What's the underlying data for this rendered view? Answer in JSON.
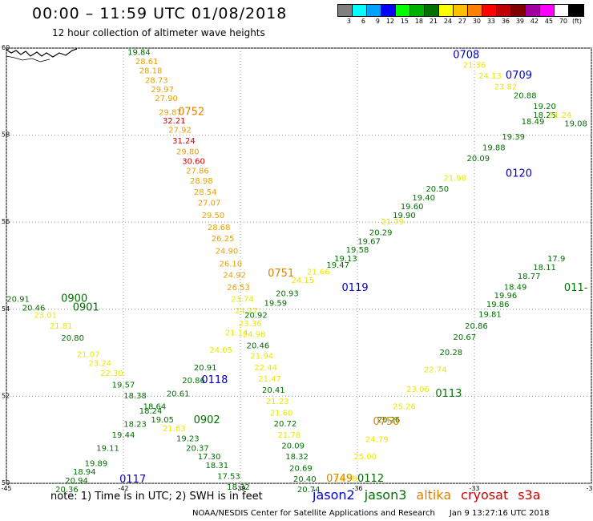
{
  "header": {
    "title": "00:00 – 11:59 UTC 01/08/2018",
    "subtitle": "12 hour collection of altimeter wave heights"
  },
  "colorbar": {
    "unit_label": "(ft)",
    "bins": [
      {
        "label": "3",
        "color": "#808080"
      },
      {
        "label": "6",
        "color": "#00ffff"
      },
      {
        "label": "9",
        "color": "#00a0ff"
      },
      {
        "label": "12",
        "color": "#0000ff"
      },
      {
        "label": "15",
        "color": "#00ff00"
      },
      {
        "label": "18",
        "color": "#00b000"
      },
      {
        "label": "21",
        "color": "#007000"
      },
      {
        "label": "24",
        "color": "#ffff00"
      },
      {
        "label": "27",
        "color": "#ffc000"
      },
      {
        "label": "30",
        "color": "#ff8000"
      },
      {
        "label": "33",
        "color": "#ff0000"
      },
      {
        "label": "36",
        "color": "#c00000"
      },
      {
        "label": "39",
        "color": "#800000"
      },
      {
        "label": "42",
        "color": "#a000a0"
      },
      {
        "label": "45",
        "color": "#ff00ff"
      },
      {
        "label": "70",
        "color": "#ffffff"
      },
      {
        "label": "(ft)",
        "color": "#000000"
      }
    ]
  },
  "map": {
    "lon_range": [
      -45,
      -30
    ],
    "lat_range": [
      50,
      60
    ],
    "lon_ticks": [
      "-45",
      "-42",
      "-39",
      "-36",
      "-33",
      "-30"
    ],
    "lat_ticks": [
      "50",
      "52",
      "54",
      "56",
      "58",
      "60"
    ],
    "track_colors": {
      "jason2": "#0000cc",
      "jason3": "#007000",
      "altika": "#e08000",
      "cryosat": "#cc0000",
      "s3a": "#cc0000"
    },
    "height_colors": {
      "green": "#007000",
      "yellow": "#e8e800",
      "orange": "#e8a000",
      "red": "#cc0000"
    },
    "passes": [
      {
        "id": "0708",
        "lon": -33.55,
        "lat": 59.77,
        "sat": "jason2"
      },
      {
        "id": "0709",
        "lon": -32.2,
        "lat": 59.3,
        "sat": "jason2"
      },
      {
        "id": "0752",
        "lon": -40.6,
        "lat": 58.46,
        "sat": "altika"
      },
      {
        "id": "0751",
        "lon": -38.3,
        "lat": 54.75,
        "sat": "altika"
      },
      {
        "id": "0750",
        "lon": -35.6,
        "lat": 51.34,
        "sat": "altika"
      },
      {
        "id": "0749",
        "lon": -36.8,
        "lat": 50.04,
        "sat": "altika"
      },
      {
        "id": "0120",
        "lon": -32.2,
        "lat": 57.04,
        "sat": "jason2"
      },
      {
        "id": "0119",
        "lon": -36.4,
        "lat": 54.42,
        "sat": "jason2"
      },
      {
        "id": "0118",
        "lon": -40.0,
        "lat": 52.3,
        "sat": "jason2"
      },
      {
        "id": "0117",
        "lon": -42.1,
        "lat": 50.02,
        "sat": "jason2"
      },
      {
        "id": "0900",
        "lon": -43.6,
        "lat": 54.17,
        "sat": "jason3"
      },
      {
        "id": "0901",
        "lon": -43.3,
        "lat": 53.97,
        "sat": "jason3"
      },
      {
        "id": "0902",
        "lon": -40.2,
        "lat": 51.38,
        "sat": "jason3"
      },
      {
        "id": "0113",
        "lon": -34.0,
        "lat": 51.99,
        "sat": "jason3"
      },
      {
        "id": "0112",
        "lon": -36.0,
        "lat": 50.04,
        "sat": "jason3"
      },
      {
        "id": "011-",
        "lon": -30.7,
        "lat": 54.42,
        "sat": "jason3"
      }
    ],
    "tracks": [
      {
        "name": "altika-0752-0750",
        "points": [
          {
            "lon": -41.6,
            "lat": 59.84,
            "v": "19.84",
            "c": "green"
          },
          {
            "lon": -41.4,
            "lat": 59.63,
            "v": "28.61",
            "c": "orange"
          },
          {
            "lon": -41.3,
            "lat": 59.42,
            "v": "28.18",
            "c": "orange"
          },
          {
            "lon": -41.15,
            "lat": 59.2,
            "v": "28.73",
            "c": "orange"
          },
          {
            "lon": -41.0,
            "lat": 58.99,
            "v": "29.97",
            "c": "orange"
          },
          {
            "lon": -40.9,
            "lat": 58.78,
            "v": "27.90",
            "c": "orange"
          },
          {
            "lon": -40.8,
            "lat": 58.46,
            "v": "29.87",
            "c": "orange"
          },
          {
            "lon": -40.7,
            "lat": 58.27,
            "v": "32.21",
            "c": "red"
          },
          {
            "lon": -40.55,
            "lat": 58.06,
            "v": "27.92",
            "c": "orange"
          },
          {
            "lon": -40.45,
            "lat": 57.81,
            "v": "31.24",
            "c": "red"
          },
          {
            "lon": -40.35,
            "lat": 57.56,
            "v": "29.80",
            "c": "orange"
          },
          {
            "lon": -40.2,
            "lat": 57.34,
            "v": "30.60",
            "c": "red"
          },
          {
            "lon": -40.1,
            "lat": 57.12,
            "v": "27.86",
            "c": "orange"
          },
          {
            "lon": -40.0,
            "lat": 56.89,
            "v": "28.98",
            "c": "orange"
          },
          {
            "lon": -39.9,
            "lat": 56.63,
            "v": "28.54",
            "c": "orange"
          },
          {
            "lon": -39.8,
            "lat": 56.38,
            "v": "27.07",
            "c": "orange"
          },
          {
            "lon": -39.7,
            "lat": 56.1,
            "v": "29.50",
            "c": "orange"
          },
          {
            "lon": -39.55,
            "lat": 55.82,
            "v": "28.68",
            "c": "orange"
          },
          {
            "lon": -39.45,
            "lat": 55.56,
            "v": "26.25",
            "c": "orange"
          },
          {
            "lon": -39.35,
            "lat": 55.28,
            "v": "24.90",
            "c": "orange"
          },
          {
            "lon": -39.25,
            "lat": 54.98,
            "v": "26.10",
            "c": "orange"
          },
          {
            "lon": -39.15,
            "lat": 54.72,
            "v": "24.92",
            "c": "orange"
          },
          {
            "lon": -39.05,
            "lat": 54.44,
            "v": "26.53",
            "c": "orange"
          },
          {
            "lon": -38.95,
            "lat": 54.17,
            "v": "23.74",
            "c": "yellow"
          },
          {
            "lon": -38.85,
            "lat": 53.9,
            "v": "24.27",
            "c": "yellow"
          },
          {
            "lon": -38.75,
            "lat": 53.61,
            "v": "23.36",
            "c": "yellow"
          },
          {
            "lon": -38.65,
            "lat": 53.36,
            "v": "24.98",
            "c": "yellow"
          },
          {
            "lon": -38.55,
            "lat": 53.1,
            "v": "20.46",
            "c": "green"
          },
          {
            "lon": -38.45,
            "lat": 52.86,
            "v": "21.94",
            "c": "yellow"
          },
          {
            "lon": -38.35,
            "lat": 52.6,
            "v": "22.44",
            "c": "yellow"
          },
          {
            "lon": -38.25,
            "lat": 52.34,
            "v": "21.47",
            "c": "yellow"
          },
          {
            "lon": -38.15,
            "lat": 52.08,
            "v": "20.41",
            "c": "green"
          },
          {
            "lon": -38.05,
            "lat": 51.82,
            "v": "21.23",
            "c": "yellow"
          },
          {
            "lon": -37.95,
            "lat": 51.56,
            "v": "21.60",
            "c": "yellow"
          },
          {
            "lon": -37.85,
            "lat": 51.31,
            "v": "20.72",
            "c": "green"
          },
          {
            "lon": -37.75,
            "lat": 51.05,
            "v": "21.78",
            "c": "yellow"
          },
          {
            "lon": -37.65,
            "lat": 50.8,
            "v": "20.09",
            "c": "green"
          },
          {
            "lon": -37.55,
            "lat": 50.55,
            "v": "18.32",
            "c": "green"
          },
          {
            "lon": -37.45,
            "lat": 50.29,
            "v": "20.69",
            "c": "green"
          },
          {
            "lon": -37.35,
            "lat": 50.04,
            "v": "20.40",
            "c": "green"
          },
          {
            "lon": -37.25,
            "lat": 49.8,
            "v": "20.74",
            "c": "green"
          }
        ]
      },
      {
        "name": "jason2-0117-0120",
        "points": [
          {
            "lon": -43.45,
            "lat": 49.8,
            "v": "20.36",
            "c": "green"
          },
          {
            "lon": -43.2,
            "lat": 50.0,
            "v": "20.94",
            "c": "green"
          },
          {
            "lon": -43.0,
            "lat": 50.2,
            "v": "18.94",
            "c": "green"
          },
          {
            "lon": -42.7,
            "lat": 50.4,
            "v": "19.89",
            "c": "green"
          },
          {
            "lon": -42.4,
            "lat": 50.75,
            "v": "19.11",
            "c": "green"
          },
          {
            "lon": -42.0,
            "lat": 51.05,
            "v": "19.44",
            "c": "green"
          },
          {
            "lon": -41.7,
            "lat": 51.3,
            "v": "18.23",
            "c": "green"
          },
          {
            "lon": -41.2,
            "lat": 51.7,
            "v": "18.64",
            "c": "green"
          },
          {
            "lon": -40.6,
            "lat": 52.0,
            "v": "20.61",
            "c": "green"
          },
          {
            "lon": -40.2,
            "lat": 52.3,
            "v": "20.86",
            "c": "green"
          },
          {
            "lon": -39.9,
            "lat": 52.6,
            "v": "20.91",
            "c": "green"
          },
          {
            "lon": -39.5,
            "lat": 53.0,
            "v": "24.05",
            "c": "yellow"
          },
          {
            "lon": -39.1,
            "lat": 53.4,
            "v": "21.14",
            "c": "yellow"
          },
          {
            "lon": -38.6,
            "lat": 53.8,
            "v": "20.92",
            "c": "green"
          },
          {
            "lon": -38.1,
            "lat": 54.08,
            "v": "19.59",
            "c": "green"
          },
          {
            "lon": -37.8,
            "lat": 54.3,
            "v": "20.93",
            "c": "green"
          },
          {
            "lon": -37.4,
            "lat": 54.6,
            "v": "24.15",
            "c": "yellow"
          },
          {
            "lon": -37.0,
            "lat": 54.8,
            "v": "21.66",
            "c": "yellow"
          },
          {
            "lon": -36.5,
            "lat": 54.95,
            "v": "19.47",
            "c": "green"
          },
          {
            "lon": -36.3,
            "lat": 55.1,
            "v": "19.13",
            "c": "green"
          },
          {
            "lon": -36.0,
            "lat": 55.3,
            "v": "19.58",
            "c": "green"
          },
          {
            "lon": -35.7,
            "lat": 55.5,
            "v": "19.67",
            "c": "green"
          },
          {
            "lon": -35.4,
            "lat": 55.7,
            "v": "20.29",
            "c": "green"
          },
          {
            "lon": -35.1,
            "lat": 55.95,
            "v": "21.79",
            "c": "yellow"
          },
          {
            "lon": -34.8,
            "lat": 56.1,
            "v": "19.90",
            "c": "green"
          },
          {
            "lon": -34.6,
            "lat": 56.3,
            "v": "19.60",
            "c": "green"
          },
          {
            "lon": -34.3,
            "lat": 56.5,
            "v": "19.40",
            "c": "green"
          },
          {
            "lon": -33.95,
            "lat": 56.7,
            "v": "20.50",
            "c": "green"
          },
          {
            "lon": -33.5,
            "lat": 56.95,
            "v": "21.98",
            "c": "yellow"
          },
          {
            "lon": -32.9,
            "lat": 57.4,
            "v": "20.09",
            "c": "green"
          },
          {
            "lon": -32.5,
            "lat": 57.65,
            "v": "19.88",
            "c": "green"
          },
          {
            "lon": -32.0,
            "lat": 57.9,
            "v": "19.39",
            "c": "green"
          },
          {
            "lon": -31.5,
            "lat": 58.25,
            "v": "18.49",
            "c": "green"
          },
          {
            "lon": -31.2,
            "lat": 58.4,
            "v": "18.25",
            "c": "green"
          }
        ]
      },
      {
        "name": "jason3-0900-0902",
        "points": [
          {
            "lon": -44.7,
            "lat": 54.17,
            "v": "20.91",
            "c": "green"
          },
          {
            "lon": -44.3,
            "lat": 53.97,
            "v": "20.46",
            "c": "green"
          },
          {
            "lon": -44.0,
            "lat": 53.8,
            "v": "23.01",
            "c": "yellow"
          },
          {
            "lon": -43.6,
            "lat": 53.55,
            "v": "21.81",
            "c": "yellow"
          },
          {
            "lon": -43.3,
            "lat": 53.28,
            "v": "20.80",
            "c": "green"
          },
          {
            "lon": -42.9,
            "lat": 52.9,
            "v": "21.07",
            "c": "yellow"
          },
          {
            "lon": -42.6,
            "lat": 52.7,
            "v": "23.24",
            "c": "yellow"
          },
          {
            "lon": -42.3,
            "lat": 52.47,
            "v": "22.30",
            "c": "yellow"
          },
          {
            "lon": -42.0,
            "lat": 52.2,
            "v": "19.57",
            "c": "green"
          },
          {
            "lon": -41.7,
            "lat": 51.95,
            "v": "18.38",
            "c": "green"
          },
          {
            "lon": -41.3,
            "lat": 51.6,
            "v": "18.24",
            "c": "green"
          },
          {
            "lon": -41.0,
            "lat": 51.4,
            "v": "19.05",
            "c": "green"
          },
          {
            "lon": -40.7,
            "lat": 51.2,
            "v": "21.63",
            "c": "yellow"
          },
          {
            "lon": -40.35,
            "lat": 50.97,
            "v": "19.23",
            "c": "green"
          },
          {
            "lon": -40.1,
            "lat": 50.75,
            "v": "20.37",
            "c": "green"
          },
          {
            "lon": -39.8,
            "lat": 50.55,
            "v": "17.30",
            "c": "green"
          },
          {
            "lon": -39.6,
            "lat": 50.35,
            "v": "18.31",
            "c": "green"
          },
          {
            "lon": -39.3,
            "lat": 50.1,
            "v": "17.53",
            "c": "green"
          },
          {
            "lon": -39.05,
            "lat": 49.85,
            "v": "18.32",
            "c": "green"
          }
        ]
      },
      {
        "name": "jason3-0112-0113",
        "points": [
          {
            "lon": -36.3,
            "lat": 50.05,
            "v": "23.58",
            "c": "yellow"
          },
          {
            "lon": -35.8,
            "lat": 50.55,
            "v": "25.00",
            "c": "yellow"
          },
          {
            "lon": -35.5,
            "lat": 50.95,
            "v": "24.79",
            "c": "yellow"
          },
          {
            "lon": -35.2,
            "lat": 51.4,
            "v": "20.26",
            "c": "green"
          },
          {
            "lon": -34.8,
            "lat": 51.7,
            "v": "25.26",
            "c": "yellow"
          },
          {
            "lon": -34.45,
            "lat": 52.1,
            "v": "23.06",
            "c": "yellow"
          },
          {
            "lon": -34.0,
            "lat": 52.55,
            "v": "22.74",
            "c": "yellow"
          },
          {
            "lon": -33.6,
            "lat": 52.95,
            "v": "20.28",
            "c": "green"
          },
          {
            "lon": -33.25,
            "lat": 53.3,
            "v": "20.67",
            "c": "green"
          },
          {
            "lon": -32.95,
            "lat": 53.55,
            "v": "20.86",
            "c": "green"
          },
          {
            "lon": -32.6,
            "lat": 53.82,
            "v": "19.81",
            "c": "green"
          },
          {
            "lon": -32.4,
            "lat": 54.05,
            "v": "19.86",
            "c": "green"
          },
          {
            "lon": -32.2,
            "lat": 54.25,
            "v": "19.96",
            "c": "green"
          },
          {
            "lon": -31.95,
            "lat": 54.45,
            "v": "18.49",
            "c": "green"
          },
          {
            "lon": -31.6,
            "lat": 54.7,
            "v": "18.77",
            "c": "green"
          },
          {
            "lon": -31.2,
            "lat": 54.9,
            "v": "18.11",
            "c": "green"
          },
          {
            "lon": -30.9,
            "lat": 55.1,
            "v": "17.9",
            "c": "green"
          }
        ]
      },
      {
        "name": "jason2-0708-0709",
        "points": [
          {
            "lon": -33.0,
            "lat": 59.55,
            "v": "21.36",
            "c": "yellow"
          },
          {
            "lon": -32.6,
            "lat": 59.3,
            "v": "24.13",
            "c": "yellow"
          },
          {
            "lon": -32.2,
            "lat": 59.05,
            "v": "23.82",
            "c": "yellow"
          },
          {
            "lon": -31.7,
            "lat": 58.85,
            "v": "20.88",
            "c": "green"
          },
          {
            "lon": -31.2,
            "lat": 58.6,
            "v": "19.20",
            "c": "green"
          },
          {
            "lon": -30.8,
            "lat": 58.4,
            "v": "21.24",
            "c": "yellow"
          },
          {
            "lon": -30.4,
            "lat": 58.2,
            "v": "19.08",
            "c": "green"
          }
        ]
      }
    ]
  },
  "footer": {
    "note": "note: 1) Time is in UTC; 2) SWH is in feet",
    "legend": [
      {
        "label": "jason2",
        "color": "#0000cc"
      },
      {
        "label": "jason3",
        "color": "#007000"
      },
      {
        "label": "altika",
        "color": "#e08000"
      },
      {
        "label": "cryosat",
        "color": "#cc0000"
      },
      {
        "label": "s3a",
        "color": "#cc0000"
      }
    ],
    "credit": "NOAA/NESDIS Center for Satellite Applications and Research",
    "timestamp": "Jan  9 13:27:16 UTC 2018"
  }
}
